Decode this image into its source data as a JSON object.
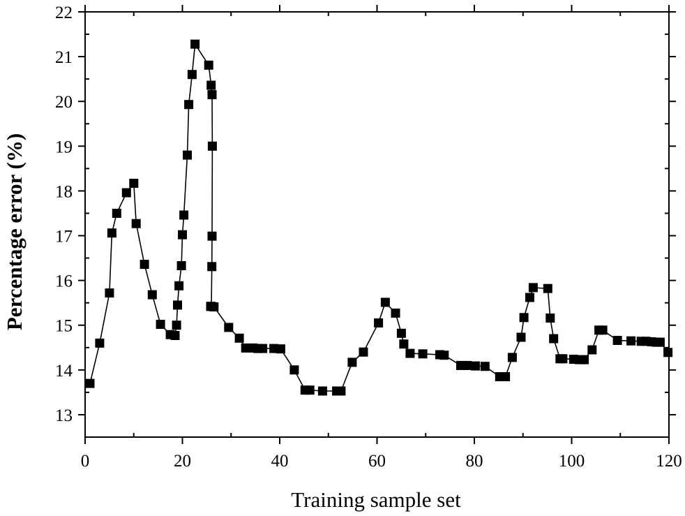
{
  "chart_data": {
    "type": "line",
    "title": "",
    "xlabel": "Training sample set",
    "ylabel": "Percentage error (%)",
    "xlim": [
      0,
      120
    ],
    "ylim": [
      12.5,
      22
    ],
    "xticks": [
      0,
      20,
      40,
      60,
      80,
      100,
      120
    ],
    "yticks": [
      13,
      14,
      15,
      16,
      17,
      18,
      19,
      20,
      21,
      22
    ],
    "grid": false,
    "legend": "none",
    "colors": {
      "line": "#000000",
      "marker": "#000000",
      "axis": "#000000"
    },
    "marker": "filled-square",
    "series": [
      {
        "x": [
          1,
          3,
          5,
          5.5,
          6.5,
          8.5,
          10,
          10.5,
          12.2,
          13.8,
          15.5,
          17.5,
          18.5,
          18.8,
          19,
          19.3,
          19.8,
          20,
          20.3,
          21,
          21.3,
          22,
          22.6,
          25.4,
          25.9,
          26.1,
          26.15,
          26.1,
          26.05,
          25.95,
          25.8,
          26.5,
          29.5,
          31.7,
          33,
          34.5,
          35.5,
          36.5,
          38.8,
          40.2,
          43,
          45.2,
          46.2,
          48.8,
          51.7,
          52.6,
          54.9,
          57.2,
          60.3,
          61.7,
          63.8,
          65,
          65.5,
          66.8,
          69.4,
          72.9,
          73.8,
          77.2,
          78.5,
          80.2,
          82.2,
          85.2,
          86.4,
          87.8,
          89.6,
          90.2,
          91.4,
          92.1,
          95.1,
          95.6,
          96.3,
          97.6,
          98.2,
          100.4,
          101.6,
          102.6,
          104.2,
          105.6,
          106.4,
          109.4,
          112.2,
          114.3,
          115.3,
          116.4,
          117.4,
          118.2,
          119.8
        ],
        "y": [
          13.7,
          14.6,
          15.72,
          17.06,
          17.5,
          17.96,
          18.17,
          17.27,
          16.36,
          15.68,
          15.02,
          14.79,
          14.77,
          15.0,
          15.45,
          15.88,
          16.33,
          17.02,
          17.46,
          18.8,
          19.93,
          20.6,
          21.28,
          20.81,
          20.36,
          20.15,
          19.0,
          16.99,
          16.31,
          15.42,
          15.42,
          15.41,
          14.95,
          14.71,
          14.49,
          14.49,
          14.48,
          14.48,
          14.48,
          14.47,
          14.0,
          13.55,
          13.55,
          13.53,
          13.53,
          13.53,
          14.17,
          14.4,
          15.05,
          15.51,
          15.27,
          14.82,
          14.58,
          14.37,
          14.36,
          14.34,
          14.33,
          14.1,
          14.1,
          14.09,
          14.08,
          13.85,
          13.85,
          14.28,
          14.73,
          15.17,
          15.62,
          15.84,
          15.82,
          15.16,
          14.7,
          14.25,
          14.25,
          14.24,
          14.23,
          14.23,
          14.45,
          14.89,
          14.89,
          14.66,
          14.65,
          14.64,
          14.64,
          14.63,
          14.62,
          14.62,
          14.39
        ]
      }
    ]
  }
}
